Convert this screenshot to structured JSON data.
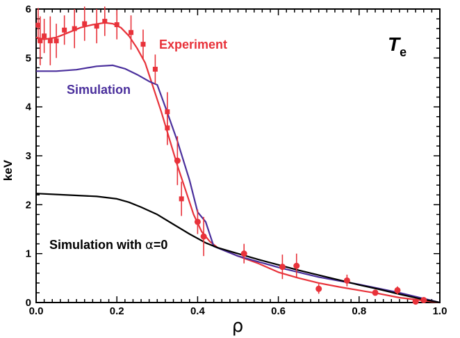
{
  "chart_data": {
    "type": "line",
    "xlabel": "ρ",
    "ylabel": "keV",
    "xlim": [
      0,
      1.0
    ],
    "ylim": [
      0,
      6
    ],
    "x_ticks": [
      "0.0",
      "0.2",
      "0.4",
      "0.6",
      "0.8",
      "1.0"
    ],
    "y_ticks": [
      "0",
      "1",
      "2",
      "3",
      "4",
      "5",
      "6"
    ],
    "corner_label": {
      "main": "T",
      "sub": "e"
    },
    "annotations": {
      "experiment": "Experiment",
      "simulation": "Simulation",
      "simulation_alpha_prefix": "Simulation with ",
      "simulation_alpha_symbol": "α",
      "simulation_alpha_suffix": "=0"
    },
    "colors": {
      "experiment": "#e8323a",
      "simulation": "#4a2f9c",
      "simulation_alpha": "#000000"
    },
    "series": [
      {
        "name": "Experiment",
        "kind": "errorbar",
        "marker": "square",
        "points": [
          {
            "x": 0.005,
            "y": 5.67,
            "err": 0.35
          },
          {
            "x": 0.01,
            "y": 5.35,
            "err": 0.5
          },
          {
            "x": 0.02,
            "y": 5.45,
            "err": 0.35
          },
          {
            "x": 0.035,
            "y": 5.35,
            "err": 0.5
          },
          {
            "x": 0.05,
            "y": 5.35,
            "err": 0.35
          },
          {
            "x": 0.07,
            "y": 5.57,
            "err": 0.3
          },
          {
            "x": 0.095,
            "y": 5.6,
            "err": 0.4
          },
          {
            "x": 0.12,
            "y": 5.7,
            "err": 0.35
          },
          {
            "x": 0.15,
            "y": 5.65,
            "err": 0.35
          },
          {
            "x": 0.17,
            "y": 5.75,
            "err": 0.3
          },
          {
            "x": 0.2,
            "y": 5.68,
            "err": 0.3
          },
          {
            "x": 0.235,
            "y": 5.52,
            "err": 0.35
          },
          {
            "x": 0.265,
            "y": 5.28,
            "err": 0.3
          },
          {
            "x": 0.295,
            "y": 4.77,
            "err": 0.3
          },
          {
            "x": 0.325,
            "y": 3.9,
            "err": 0.4
          },
          {
            "x": 0.325,
            "y": 3.57,
            "err": 0.35
          },
          {
            "x": 0.36,
            "y": 2.12,
            "err": 0.35
          }
        ]
      },
      {
        "name": "Experiment",
        "kind": "errorbar",
        "marker": "circle",
        "points": [
          {
            "x": 0.35,
            "y": 2.9,
            "err": 0.5
          },
          {
            "x": 0.4,
            "y": 1.65,
            "err": 0.25
          },
          {
            "x": 0.415,
            "y": 1.35,
            "err": 0.4
          },
          {
            "x": 0.515,
            "y": 1.0,
            "err": 0.2
          },
          {
            "x": 0.61,
            "y": 0.73,
            "err": 0.25
          },
          {
            "x": 0.645,
            "y": 0.75,
            "err": 0.25
          },
          {
            "x": 0.7,
            "y": 0.28,
            "err": 0.1
          },
          {
            "x": 0.77,
            "y": 0.45,
            "err": 0.12
          },
          {
            "x": 0.84,
            "y": 0.2,
            "err": 0.05
          },
          {
            "x": 0.895,
            "y": 0.25,
            "err": 0.08
          },
          {
            "x": 0.94,
            "y": 0.02,
            "err": 0.03
          },
          {
            "x": 0.96,
            "y": 0.05,
            "err": 0.03
          }
        ]
      },
      {
        "name": "Experiment",
        "kind": "fit",
        "x": [
          0.0,
          0.02,
          0.05,
          0.08,
          0.11,
          0.14,
          0.17,
          0.19,
          0.21,
          0.23,
          0.25,
          0.27,
          0.29,
          0.31,
          0.33,
          0.35,
          0.37,
          0.39,
          0.41,
          0.43,
          0.45,
          0.5,
          0.55,
          0.6,
          0.65,
          0.7,
          0.75,
          0.8,
          0.85,
          0.9,
          0.95,
          1.0
        ],
        "y": [
          5.42,
          5.38,
          5.42,
          5.52,
          5.62,
          5.68,
          5.72,
          5.7,
          5.62,
          5.45,
          5.2,
          4.9,
          4.4,
          3.9,
          3.35,
          2.8,
          2.3,
          1.8,
          1.45,
          1.25,
          1.12,
          0.95,
          0.8,
          0.62,
          0.5,
          0.4,
          0.32,
          0.25,
          0.18,
          0.1,
          0.05,
          0.0
        ]
      },
      {
        "name": "Simulation",
        "kind": "line",
        "x": [
          0.0,
          0.05,
          0.1,
          0.15,
          0.19,
          0.22,
          0.25,
          0.28,
          0.3,
          0.32,
          0.35,
          0.38,
          0.4,
          0.42,
          0.44,
          0.5,
          0.6,
          0.7,
          0.8,
          0.9,
          0.95,
          1.0
        ],
        "y": [
          4.73,
          4.73,
          4.76,
          4.83,
          4.85,
          4.78,
          4.66,
          4.52,
          4.45,
          4.0,
          3.3,
          2.5,
          1.85,
          1.65,
          1.15,
          0.95,
          0.72,
          0.52,
          0.37,
          0.2,
          0.1,
          0.0
        ]
      },
      {
        "name": "Simulation with α=0",
        "kind": "line",
        "x": [
          0.0,
          0.05,
          0.1,
          0.15,
          0.2,
          0.23,
          0.26,
          0.3,
          0.34,
          0.38,
          0.42,
          0.45,
          0.5,
          0.55,
          0.6,
          0.65,
          0.7,
          0.75,
          0.8,
          0.85,
          0.9,
          0.95,
          1.0
        ],
        "y": [
          2.23,
          2.21,
          2.19,
          2.17,
          2.12,
          2.05,
          1.95,
          1.8,
          1.6,
          1.4,
          1.22,
          1.12,
          1.0,
          0.88,
          0.77,
          0.66,
          0.56,
          0.46,
          0.36,
          0.27,
          0.17,
          0.08,
          0.0
        ]
      }
    ]
  }
}
